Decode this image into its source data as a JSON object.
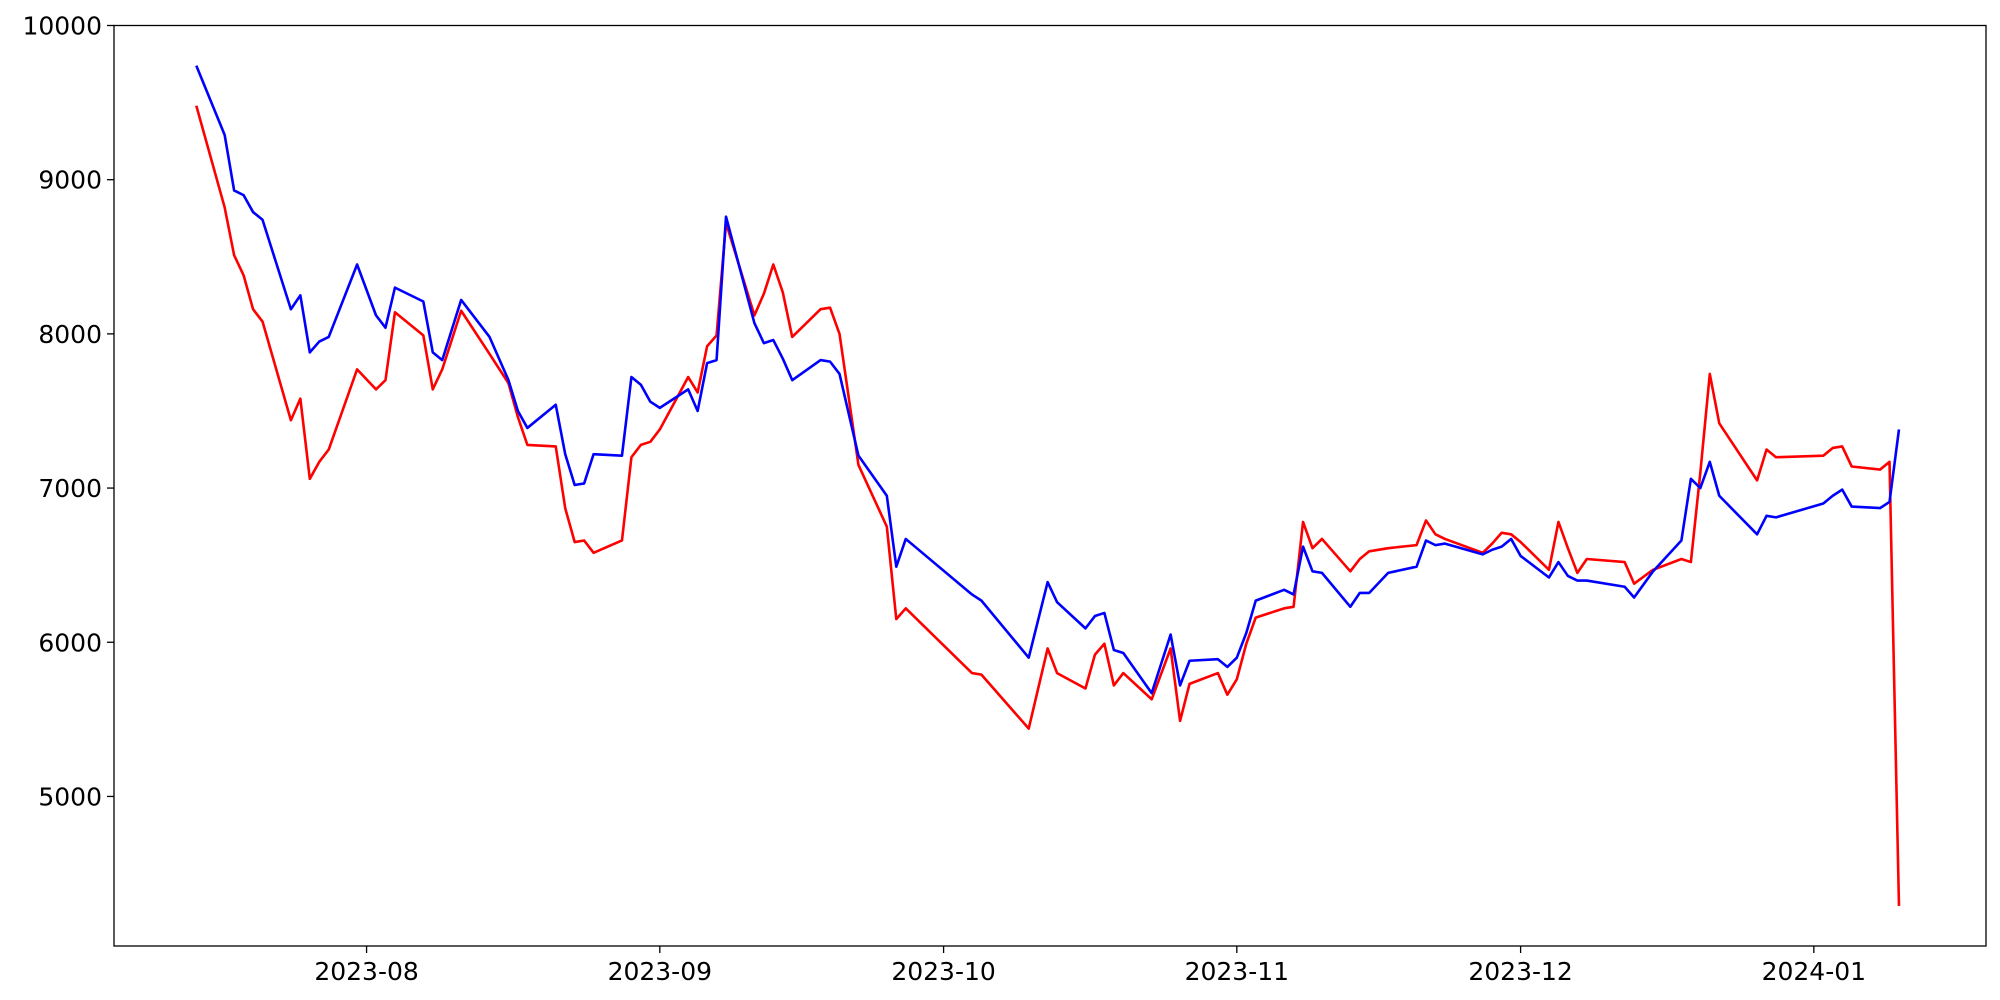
{
  "chart_data": {
    "type": "line",
    "x": [
      19552,
      19555,
      19556,
      19557,
      19558,
      19559,
      19562,
      19563,
      19564,
      19565,
      19566,
      19569,
      19571,
      19572,
      19573,
      19576,
      19577,
      19578,
      19580,
      19583,
      19585,
      19586,
      19587,
      19590,
      19591,
      19592,
      19593,
      19594,
      19597,
      19598,
      19599,
      19600,
      19601,
      19604,
      19605,
      19606,
      19607,
      19608,
      19611,
      19612,
      19613,
      19614,
      19615,
      19618,
      19619,
      19620,
      19622,
      19625,
      19626,
      19627,
      19634,
      19635,
      19640,
      19642,
      19643,
      19646,
      19647,
      19648,
      19649,
      19650,
      19653,
      19655,
      19656,
      19657,
      19660,
      19661,
      19662,
      19663,
      19664,
      19667,
      19668,
      19669,
      19670,
      19671,
      19674,
      19675,
      19676,
      19678,
      19681,
      19682,
      19683,
      19684,
      19688,
      19689,
      19690,
      19691,
      19692,
      19695,
      19696,
      19697,
      19698,
      19699,
      19703,
      19704,
      19706,
      19709,
      19710,
      19711,
      19712,
      19713,
      19717,
      19718,
      19719,
      19724,
      19725,
      19726,
      19727,
      19730,
      19731,
      19732
    ],
    "series": [
      {
        "color": "#ff0000",
        "values": [
          9480,
          8820,
          8510,
          8380,
          8160,
          8080,
          7440,
          7580,
          7060,
          7170,
          7250,
          7770,
          7640,
          7700,
          8140,
          7990,
          7640,
          7770,
          8150,
          7870,
          7680,
          7460,
          7280,
          7270,
          6870,
          6650,
          6660,
          6580,
          6660,
          7200,
          7280,
          7300,
          7380,
          7720,
          7620,
          7920,
          7990,
          8720,
          8120,
          8260,
          8450,
          8270,
          7980,
          8160,
          8170,
          8000,
          7150,
          6750,
          6150,
          6220,
          5800,
          5790,
          5440,
          5960,
          5800,
          5700,
          5920,
          5990,
          5720,
          5800,
          5630,
          5960,
          5490,
          5730,
          5800,
          5660,
          5760,
          5990,
          6160,
          6220,
          6230,
          6780,
          6610,
          6670,
          6460,
          6540,
          6590,
          6610,
          6630,
          6790,
          6700,
          6670,
          6580,
          6640,
          6710,
          6700,
          6650,
          6470,
          6780,
          6610,
          6450,
          6540,
          6520,
          6380,
          6470,
          6540,
          6520,
          7100,
          7740,
          7420,
          7050,
          7250,
          7200,
          7210,
          7260,
          7270,
          7140,
          7120,
          7170,
          4290
        ]
      },
      {
        "color": "#0000ff",
        "values": [
          9740,
          9290,
          8930,
          8900,
          8790,
          8740,
          8160,
          8250,
          7880,
          7950,
          7980,
          8450,
          8120,
          8040,
          8300,
          8210,
          7880,
          7830,
          8220,
          7980,
          7700,
          7500,
          7390,
          7540,
          7220,
          7020,
          7030,
          7220,
          7210,
          7720,
          7670,
          7560,
          7520,
          7640,
          7500,
          7810,
          7830,
          8760,
          8070,
          7940,
          7960,
          7840,
          7700,
          7830,
          7820,
          7740,
          7210,
          6950,
          6490,
          6670,
          6310,
          6270,
          5900,
          6390,
          6260,
          6090,
          6170,
          6190,
          5950,
          5930,
          5670,
          6050,
          5720,
          5880,
          5890,
          5840,
          5900,
          6060,
          6270,
          6340,
          6310,
          6620,
          6460,
          6450,
          6230,
          6320,
          6320,
          6450,
          6490,
          6660,
          6630,
          6640,
          6570,
          6600,
          6620,
          6670,
          6560,
          6420,
          6520,
          6430,
          6400,
          6400,
          6360,
          6290,
          6460,
          6660,
          7060,
          7000,
          7170,
          6950,
          6700,
          6820,
          6810,
          6900,
          6950,
          6990,
          6880,
          6870,
          6910,
          7380
        ]
      }
    ],
    "xlim": [
      19543.3,
      19741.2
    ],
    "xticks": [
      {
        "value": 19570,
        "label": "2023-08"
      },
      {
        "value": 19601,
        "label": "2023-09"
      },
      {
        "value": 19631,
        "label": "2023-10"
      },
      {
        "value": 19662,
        "label": "2023-11"
      },
      {
        "value": 19692,
        "label": "2023-12"
      },
      {
        "value": 19723,
        "label": "2024-01"
      }
    ],
    "ylim": [
      4030,
      10000
    ],
    "yticks": [
      5000,
      6000,
      7000,
      8000,
      9000,
      10000
    ]
  }
}
